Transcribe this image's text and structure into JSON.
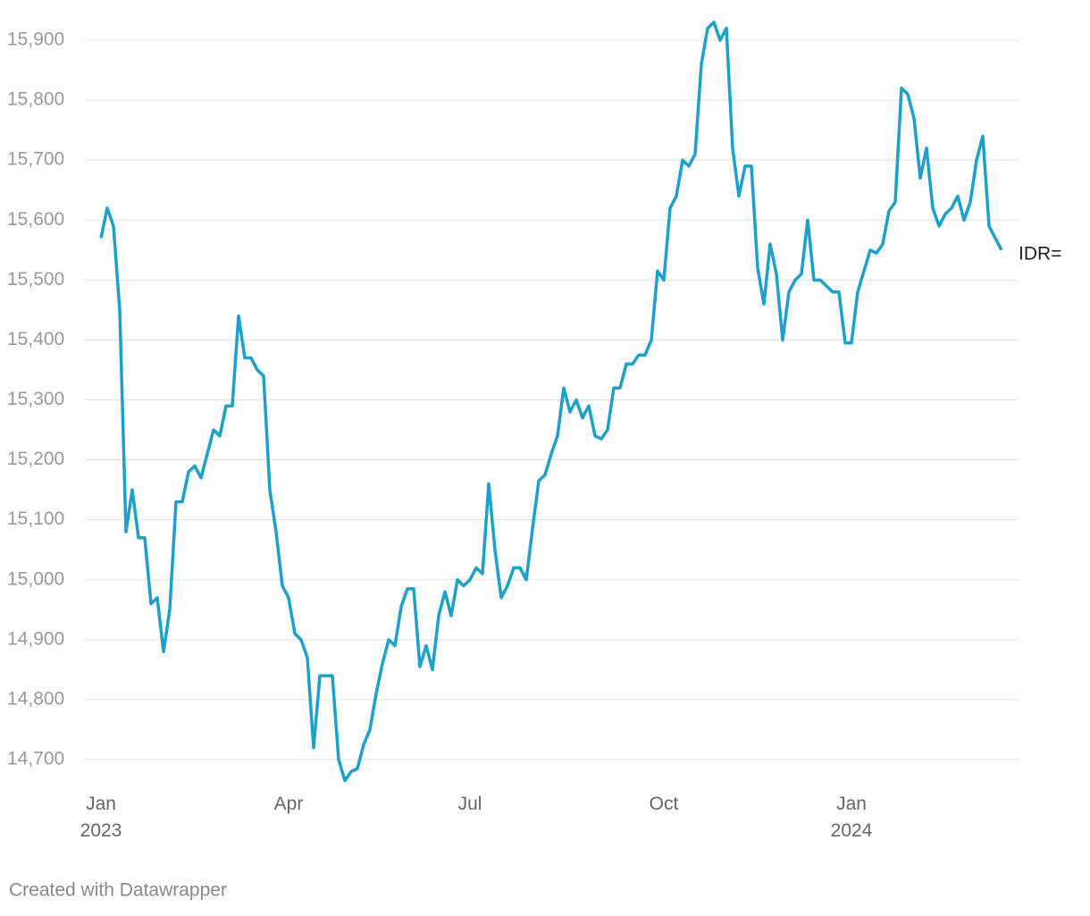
{
  "chart_data": {
    "type": "line",
    "categories": [
      "Jan 2023",
      null,
      null,
      null,
      null,
      null,
      null,
      null,
      null,
      null,
      null,
      null,
      null,
      null,
      null,
      null,
      null,
      null,
      null,
      null,
      null,
      null,
      null,
      null,
      null,
      null,
      null,
      null,
      null,
      null,
      "Apr",
      null,
      null,
      null,
      null,
      null,
      null,
      null,
      null,
      null,
      null,
      null,
      null,
      null,
      null,
      null,
      null,
      null,
      null,
      null,
      null,
      null,
      null,
      null,
      null,
      null,
      null,
      null,
      null,
      "Jul",
      null,
      null,
      null,
      null,
      null,
      null,
      null,
      null,
      null,
      null,
      null,
      null,
      null,
      null,
      null,
      null,
      null,
      null,
      null,
      null,
      null,
      null,
      null,
      null,
      null,
      null,
      null,
      null,
      null,
      null,
      "Oct",
      null,
      null,
      null,
      null,
      null,
      null,
      null,
      null,
      null,
      null,
      null,
      null,
      null,
      null,
      null,
      null,
      null,
      null,
      null,
      null,
      null,
      null,
      null,
      null,
      null,
      null,
      null,
      null,
      null,
      "Jan 2024",
      null,
      null,
      null,
      null,
      null,
      null,
      null,
      null,
      null,
      null,
      null,
      null,
      null,
      null,
      null,
      null,
      null,
      null,
      null,
      null,
      null,
      null,
      null,
      null
    ],
    "series": [
      {
        "name": "IDR=",
        "color": "#1ba1cc",
        "values": [
          15570,
          15620,
          15590,
          15450,
          15080,
          15150,
          15070,
          15070,
          14960,
          14970,
          14880,
          14950,
          15130,
          15130,
          15180,
          15190,
          15170,
          15210,
          15250,
          15240,
          15290,
          15290,
          15440,
          15370,
          15370,
          15350,
          15340,
          15150,
          15080,
          14990,
          14970,
          14910,
          14900,
          14870,
          14720,
          14840,
          14840,
          14840,
          14700,
          14665,
          14680,
          14685,
          14725,
          14750,
          14810,
          14860,
          14900,
          14890,
          14955,
          14985,
          14985,
          14855,
          14890,
          14850,
          14940,
          14980,
          14940,
          15000,
          14990,
          15000,
          15020,
          15010,
          15160,
          15050,
          14970,
          14990,
          15020,
          15020,
          15000,
          15085,
          15165,
          15175,
          15210,
          15240,
          15320,
          15280,
          15300,
          15270,
          15290,
          15240,
          15235,
          15250,
          15320,
          15320,
          15360,
          15360,
          15375,
          15375,
          15400,
          15515,
          15500,
          15620,
          15640,
          15700,
          15690,
          15710,
          15860,
          15920,
          15930,
          15900,
          15920,
          15720,
          15640,
          15690,
          15690,
          15520,
          15460,
          15560,
          15510,
          15400,
          15480,
          15500,
          15510,
          15600,
          15500,
          15500,
          15490,
          15480,
          15480,
          15395,
          15395,
          15480,
          15515,
          15550,
          15545,
          15560,
          15615,
          15630,
          15820,
          15810,
          15770,
          15670,
          15720,
          15620,
          15590,
          15610,
          15620,
          15640,
          15600,
          15630,
          15700,
          15740,
          15590,
          15570,
          15550
        ]
      }
    ],
    "ylim": [
      14700,
      15900
    ],
    "yticks": [
      {
        "value": 14700,
        "label": "14,700"
      },
      {
        "value": 14800,
        "label": "14,800"
      },
      {
        "value": 14900,
        "label": "14,900"
      },
      {
        "value": 15000,
        "label": "15,000"
      },
      {
        "value": 15100,
        "label": "15,100"
      },
      {
        "value": 15200,
        "label": "15,200"
      },
      {
        "value": 15300,
        "label": "15,300"
      },
      {
        "value": 15400,
        "label": "15,400"
      },
      {
        "value": 15500,
        "label": "15,500"
      },
      {
        "value": 15600,
        "label": "15,600"
      },
      {
        "value": 15700,
        "label": "15,700"
      },
      {
        "value": 15800,
        "label": "15,800"
      },
      {
        "value": 15900,
        "label": "15,900"
      }
    ],
    "grid": true,
    "footer": "Created with Datawrapper"
  }
}
